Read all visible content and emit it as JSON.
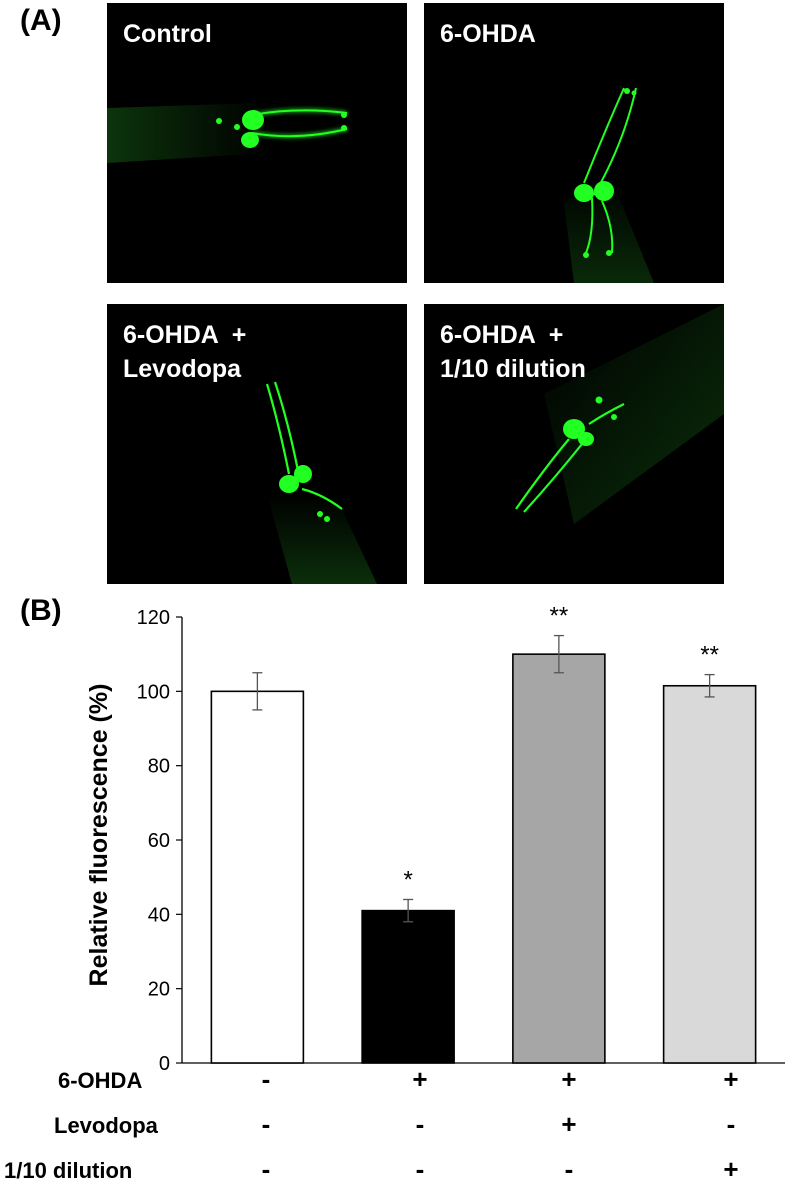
{
  "panel_a": {
    "label": "(A)",
    "images": [
      {
        "label": "Control"
      },
      {
        "label": "6-OHDA"
      },
      {
        "label": "6-OHDA  +\nLevodopa"
      },
      {
        "label": "6-OHDA  +\n1/10 dilution"
      }
    ],
    "fluorescence_color": "#22ff22"
  },
  "panel_b": {
    "label": "(B)",
    "chart_data": {
      "type": "bar",
      "categories": [
        "Control",
        "6-OHDA",
        "6-OHDA + Levodopa",
        "6-OHDA + 1/10 dilution"
      ],
      "values": [
        100,
        41,
        110,
        101.5
      ],
      "errors": [
        5,
        3,
        5,
        3
      ],
      "significance": [
        "",
        "*",
        "**",
        "**"
      ],
      "bar_colors": [
        "#ffffff",
        "#000000",
        "#a6a6a6",
        "#d9d9d9"
      ],
      "title": "",
      "xlabel": "",
      "ylabel": "Relative fluorescence  (%)",
      "ylim": [
        0,
        120
      ],
      "yticks": [
        0,
        20,
        40,
        60,
        80,
        100,
        120
      ],
      "grid": false
    },
    "conditions": [
      {
        "name": "6-OHDA",
        "values": [
          "-",
          "+",
          "+",
          "+"
        ]
      },
      {
        "name": "Levodopa",
        "values": [
          "-",
          "-",
          "+",
          "-"
        ]
      },
      {
        "name": "1/10 dilution",
        "values": [
          "-",
          "-",
          "-",
          "+"
        ]
      }
    ]
  }
}
